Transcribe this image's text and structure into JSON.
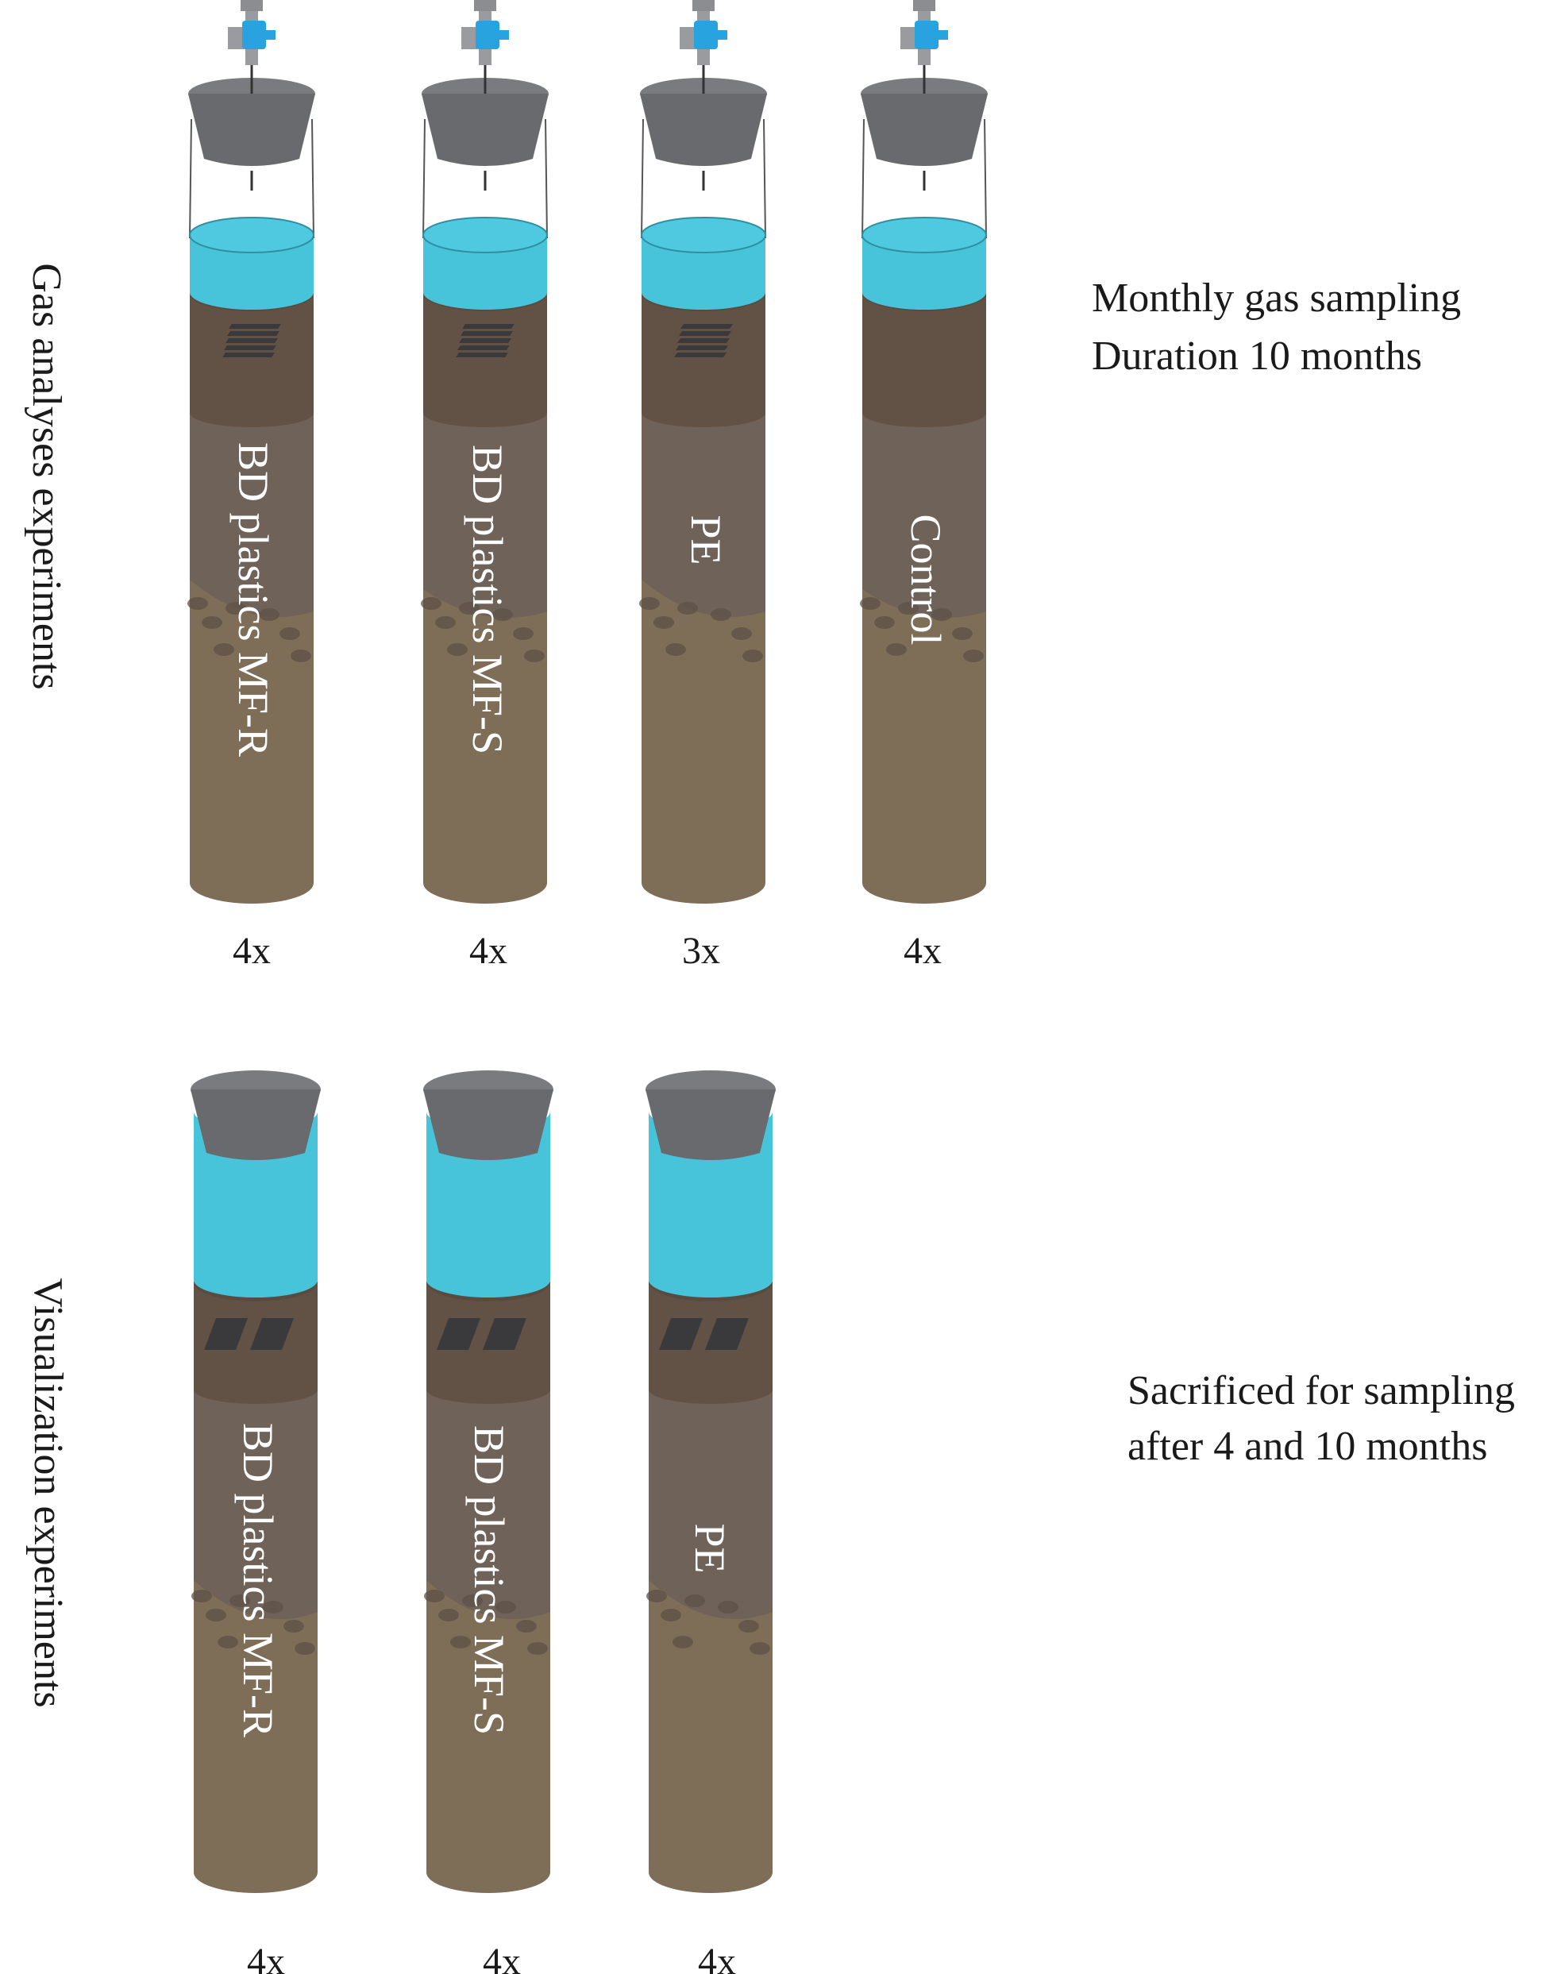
{
  "gas_section": {
    "side_label": "Gas analyses experiments",
    "note_line1": "Monthly gas sampling",
    "note_line2": "Duration 10 months",
    "columns": [
      {
        "label": "BD plastics MF-R",
        "count": "4x"
      },
      {
        "label": "BD plastics MF-S",
        "count": "4x"
      },
      {
        "label": "PE",
        "count": "3x"
      },
      {
        "label": "Control",
        "count": "4x"
      }
    ]
  },
  "visual_section": {
    "side_label": "Visualization experiments",
    "note_line1": "Sacrificed for sampling",
    "note_line2": "after 4 and 10 months",
    "columns": [
      {
        "label": "BD plastics MF-R",
        "count": "4x"
      },
      {
        "label": "BD plastics MF-S",
        "count": "4x"
      },
      {
        "label": "PE",
        "count": "4x"
      }
    ]
  },
  "colors": {
    "water": "#48c4da",
    "topsoil": "#625246",
    "subsoil": "#6f6258",
    "soil": "#7e6d57",
    "stopper": "#696a6d",
    "valve": "#29a3df",
    "plastic": "#3a3a3c",
    "text_on_column": "#ffffff"
  }
}
